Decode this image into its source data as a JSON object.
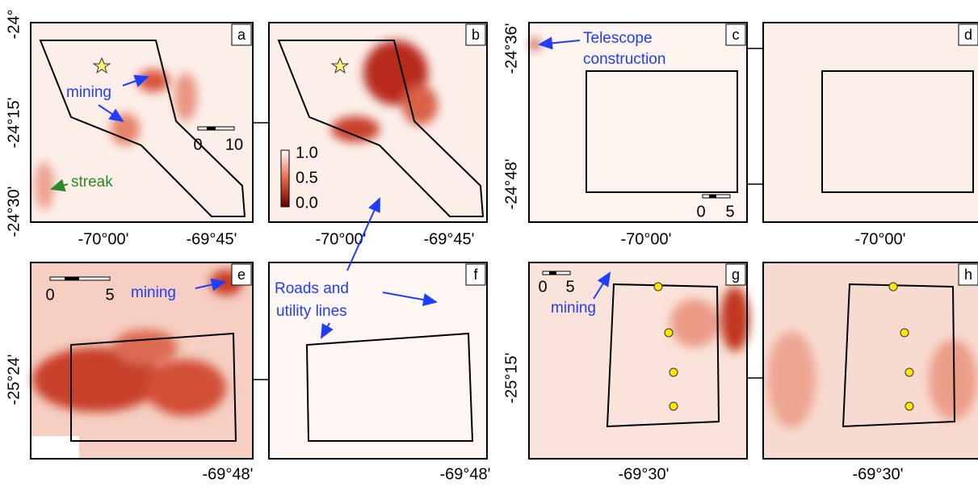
{
  "panels": [
    {
      "label": "a",
      "y_ticks": [
        "-24°",
        "-24°15'",
        "-24°30'"
      ],
      "x_ticks": [
        "-70°00'",
        "-69°45'"
      ],
      "annotations": [
        "mining",
        "streak"
      ],
      "scale_bar": [
        "0",
        "10"
      ]
    },
    {
      "label": "b",
      "x_ticks": [
        "-70°00'",
        "-69°45'"
      ],
      "colorbar": [
        "1.0",
        "0.5",
        "0.0"
      ]
    },
    {
      "label": "c",
      "y_ticks": [
        "-24°36'",
        "-24°48'"
      ],
      "x_ticks": [
        "-70°00'"
      ],
      "annotations": [
        "Telescope",
        "construction"
      ],
      "scale_bar": [
        "0",
        "5"
      ]
    },
    {
      "label": "d",
      "x_ticks": [
        "-70°00'"
      ]
    },
    {
      "label": "e",
      "y_ticks": [
        "-25°24'"
      ],
      "x_ticks": [
        "-69°48'"
      ],
      "annotations": [
        "mining"
      ],
      "scale_bar": [
        "0",
        "5"
      ]
    },
    {
      "label": "f",
      "x_ticks": [
        "-69°48'"
      ],
      "annotations": [
        "Roads and",
        "utility lines"
      ]
    },
    {
      "label": "g",
      "y_ticks": [
        "-25°15'"
      ],
      "x_ticks": [
        "-69°30'"
      ],
      "annotations": [
        "mining"
      ],
      "scale_bar": [
        "0",
        "5"
      ]
    },
    {
      "label": "h",
      "x_ticks": [
        "-69°30'"
      ]
    }
  ]
}
